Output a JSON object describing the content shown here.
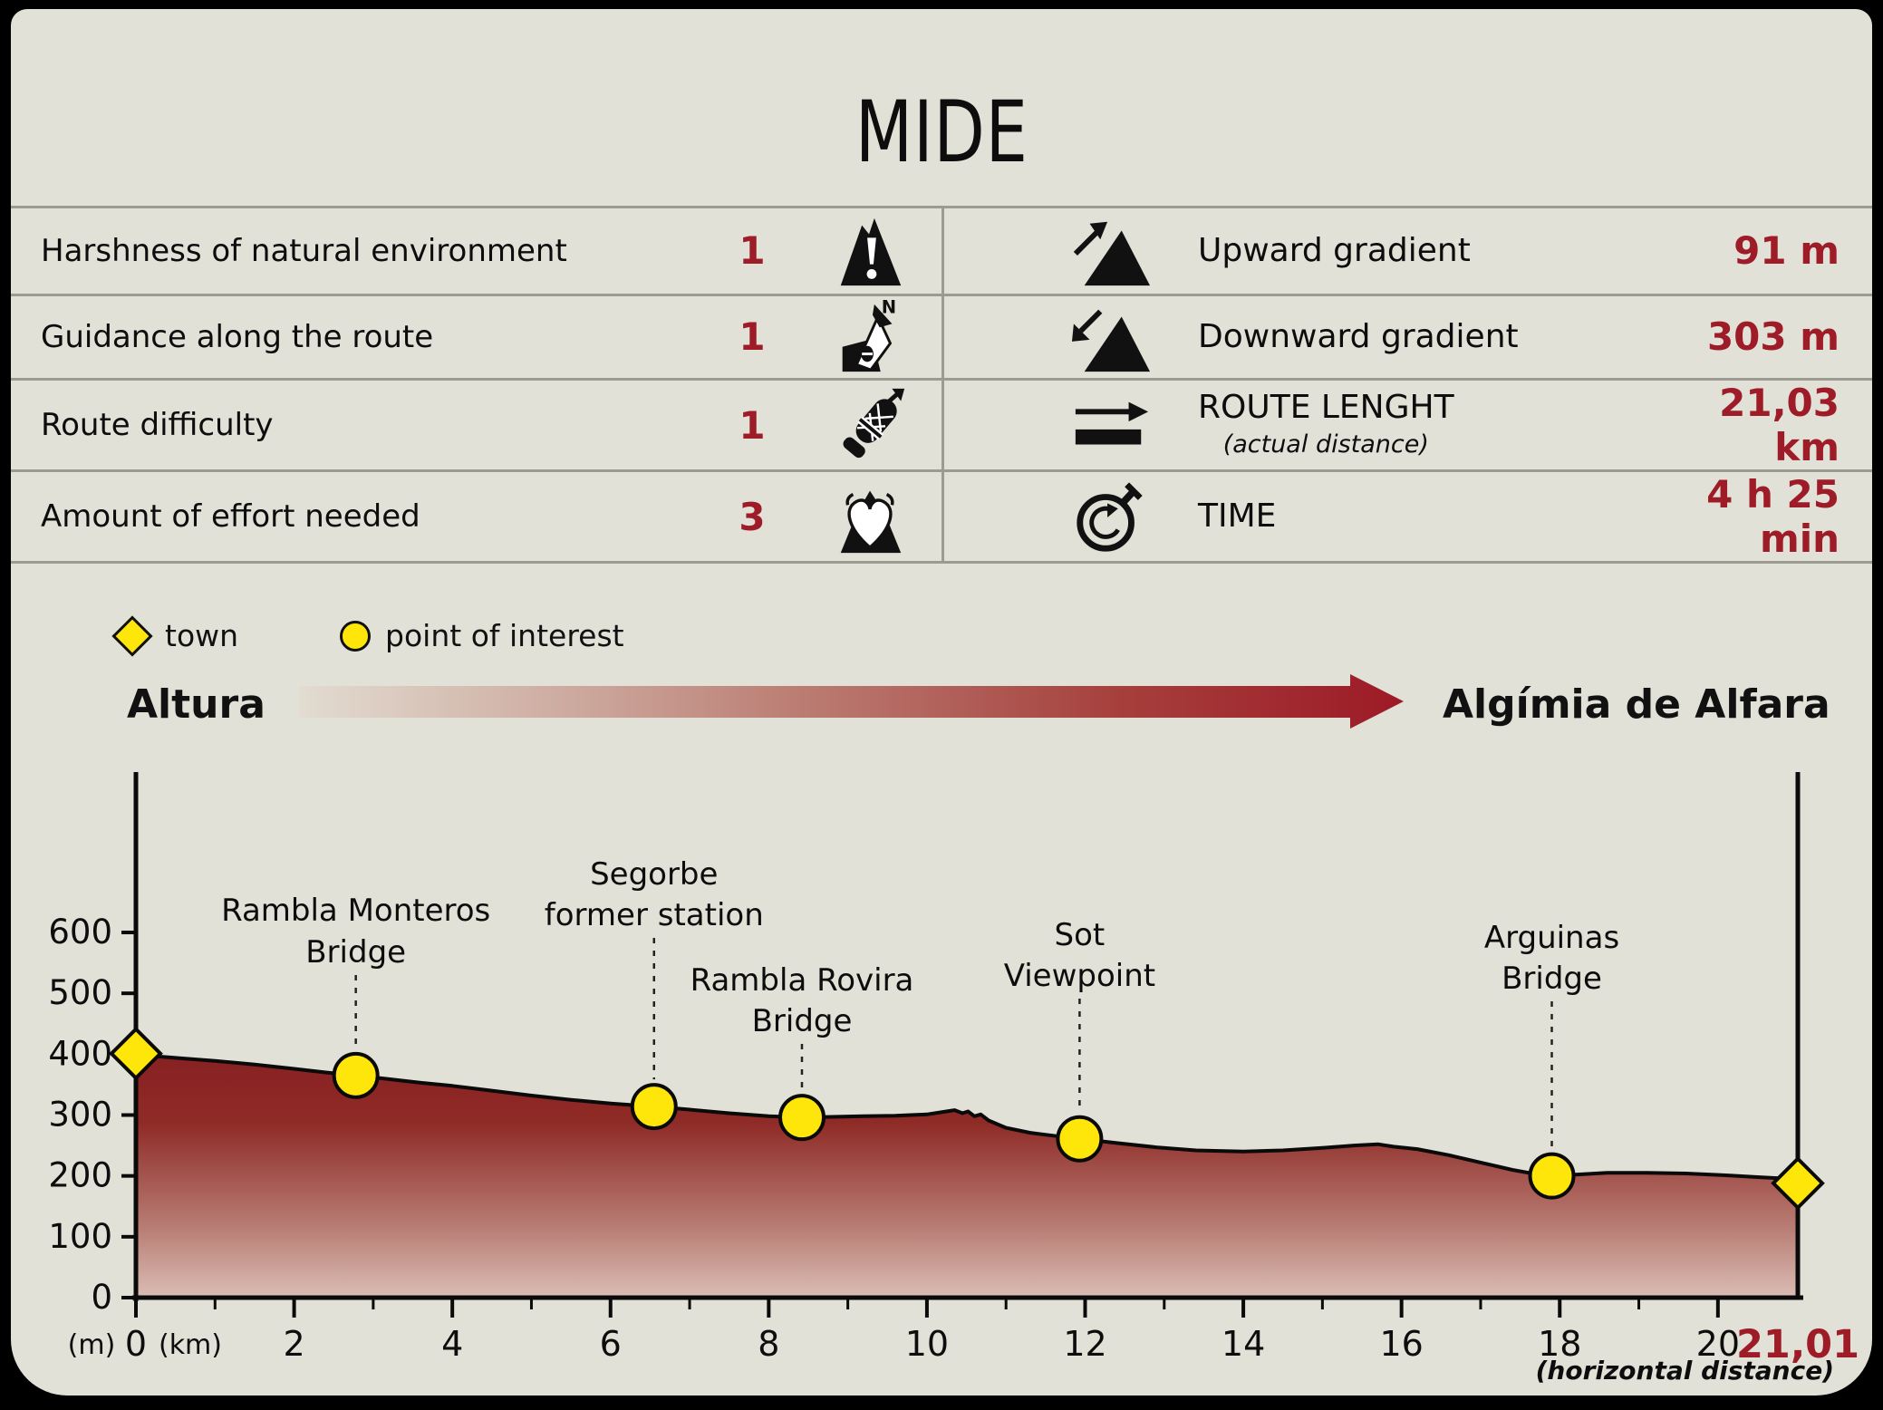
{
  "title": "MIDE",
  "table": {
    "left_rows": [
      {
        "label": "Harshness of natural environment",
        "value": "1",
        "icon": "mountain-warning-icon"
      },
      {
        "label": "Guidance along the route",
        "value": "1",
        "icon": "compass-icon"
      },
      {
        "label": "Route difficulty",
        "value": "1",
        "icon": "boot-icon"
      },
      {
        "label": "Amount of effort needed",
        "value": "3",
        "icon": "heart-effort-icon"
      }
    ],
    "right_rows": [
      {
        "label": "Upward gradient",
        "sublabel": "",
        "value": "91 m",
        "icon": "upward-gradient-icon"
      },
      {
        "label": "Downward gradient",
        "sublabel": "",
        "value": "303 m",
        "icon": "downward-gradient-icon"
      },
      {
        "label": "ROUTE LENGHT",
        "sublabel": "(actual distance)",
        "value": "21,03 km",
        "icon": "route-length-icon"
      },
      {
        "label": "TIME",
        "sublabel": "",
        "value": "4 h 25 min",
        "icon": "stopwatch-icon"
      }
    ]
  },
  "legend": {
    "town": "town",
    "poi": "point of interest"
  },
  "route": {
    "from": "Altura",
    "to": "Algímia de Alfara"
  },
  "chart_data": {
    "type": "area",
    "xlabel": "(km)",
    "ylabel": "(m)",
    "x_note": "(horizontal distance)",
    "end_label": "21,01",
    "xlim": [
      0,
      21.01
    ],
    "ylim": [
      0,
      650
    ],
    "y_ticks": [
      0,
      100,
      200,
      300,
      400,
      500,
      600
    ],
    "x_major_ticks": [
      0,
      2,
      4,
      6,
      8,
      10,
      12,
      14,
      16,
      18,
      20
    ],
    "x_minor_ticks": [
      1,
      3,
      5,
      7,
      9,
      11,
      13,
      15,
      17,
      19
    ],
    "profile": [
      [
        0,
        401
      ],
      [
        0.3,
        396
      ],
      [
        0.7,
        392
      ],
      [
        1,
        389
      ],
      [
        1.5,
        383
      ],
      [
        2,
        376
      ],
      [
        2.4,
        370
      ],
      [
        2.78,
        365
      ],
      [
        3.2,
        359
      ],
      [
        3.6,
        353
      ],
      [
        4,
        348
      ],
      [
        4.5,
        340
      ],
      [
        5,
        332
      ],
      [
        5.5,
        325
      ],
      [
        6,
        319
      ],
      [
        6.55,
        314
      ],
      [
        7,
        309
      ],
      [
        7.5,
        303
      ],
      [
        8,
        298
      ],
      [
        8.42,
        296
      ],
      [
        8.8,
        297
      ],
      [
        9.2,
        298
      ],
      [
        9.6,
        299
      ],
      [
        10,
        301
      ],
      [
        10.2,
        305
      ],
      [
        10.35,
        308
      ],
      [
        10.45,
        303
      ],
      [
        10.52,
        306
      ],
      [
        10.6,
        298
      ],
      [
        10.68,
        301
      ],
      [
        10.78,
        291
      ],
      [
        11,
        279
      ],
      [
        11.3,
        271
      ],
      [
        11.6,
        266
      ],
      [
        11.93,
        261
      ],
      [
        12.4,
        254
      ],
      [
        12.9,
        247
      ],
      [
        13.4,
        242
      ],
      [
        14,
        240
      ],
      [
        14.5,
        242
      ],
      [
        15,
        246
      ],
      [
        15.4,
        250
      ],
      [
        15.7,
        252
      ],
      [
        15.9,
        248
      ],
      [
        16.2,
        244
      ],
      [
        16.6,
        234
      ],
      [
        17,
        222
      ],
      [
        17.4,
        210
      ],
      [
        17.7,
        203
      ],
      [
        17.9,
        200
      ],
      [
        18.2,
        202
      ],
      [
        18.6,
        205
      ],
      [
        19.1,
        205
      ],
      [
        19.6,
        204
      ],
      [
        20.1,
        201
      ],
      [
        20.5,
        198
      ],
      [
        20.8,
        196
      ],
      [
        21.01,
        188
      ]
    ],
    "towns": [
      {
        "name": "Altura",
        "km": 0,
        "elev": 401
      },
      {
        "name": "Algímia de Alfara",
        "km": 21.01,
        "elev": 188
      }
    ],
    "pois": [
      {
        "label_lines": [
          "Rambla Monteros",
          "Bridge"
        ],
        "km": 2.78,
        "elev": 365,
        "label_baselines": [
          1016,
          1062
        ]
      },
      {
        "label_lines": [
          "Segorbe",
          "former station"
        ],
        "km": 6.55,
        "elev": 314,
        "label_baselines": [
          976,
          1021
        ]
      },
      {
        "label_lines": [
          "Rambla Rovira",
          "Bridge"
        ],
        "km": 8.42,
        "elev": 296,
        "label_baselines": [
          1093,
          1138
        ]
      },
      {
        "label_lines": [
          "Sot",
          "Viewpoint"
        ],
        "km": 11.93,
        "elev": 261,
        "label_baselines": [
          1043,
          1088
        ]
      },
      {
        "label_lines": [
          "Arguinas",
          "Bridge"
        ],
        "km": 17.9,
        "elev": 200,
        "label_baselines": [
          1046,
          1091
        ]
      }
    ]
  },
  "colors": {
    "accent_red": "#9d1c28",
    "panel_bg": "#e1e1d7",
    "line_gray": "#9b9b91",
    "poi_yellow": "#ffe60a",
    "profile_dark": "#871f21",
    "profile_light": "#dcc1b7"
  }
}
